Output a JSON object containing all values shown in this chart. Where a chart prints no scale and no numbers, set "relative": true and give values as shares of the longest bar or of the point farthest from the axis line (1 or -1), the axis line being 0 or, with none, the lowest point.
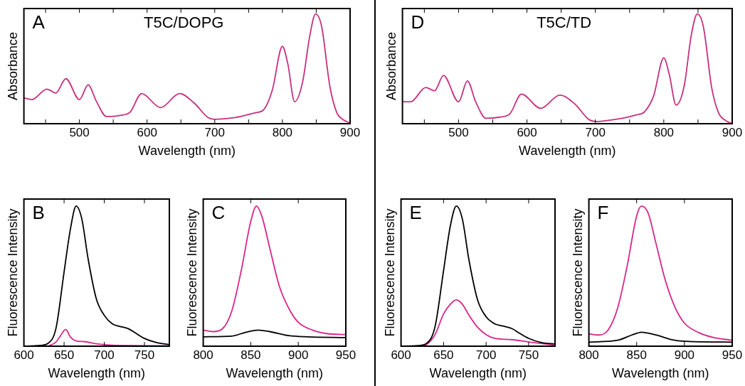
{
  "chart_data": [
    {
      "type": "line",
      "title": "T5C/DOPG",
      "annotations": [
        "A"
      ],
      "xlabel": "Wavelength (nm)",
      "ylabel": "Absorbance",
      "relative": true,
      "tick_labels": "x",
      "grid": false,
      "legend": false,
      "marker": "none",
      "line_style": "solid",
      "xlim": [
        418,
        900
      ],
      "xticks": [
        {
          "value": 450,
          "label": null
        },
        500,
        {
          "value": 550,
          "label": null
        },
        600,
        {
          "value": 650,
          "label": null
        },
        700,
        {
          "value": 750,
          "label": null
        },
        800,
        {
          "value": 850,
          "label": null
        },
        900
      ],
      "series": [
        {
          "color": "#c8307f",
          "x": [
            418,
            430,
            452,
            465,
            480,
            500,
            513,
            525,
            540,
            560,
            575,
            592,
            620,
            648,
            670,
            690,
            700,
            730,
            760,
            772,
            785,
            800,
            808,
            818,
            830,
            840,
            849,
            858,
            870,
            880,
            890,
            900
          ],
          "values": [
            0.236,
            0.22,
            0.315,
            0.28,
            0.41,
            0.22,
            0.355,
            0.205,
            0.066,
            0.076,
            0.106,
            0.275,
            0.146,
            0.275,
            0.186,
            0.056,
            0.04,
            0.056,
            0.1,
            0.126,
            0.305,
            0.705,
            0.545,
            0.2,
            0.385,
            0.785,
            1,
            0.885,
            0.345,
            0.106,
            0.036,
            0.006
          ]
        }
      ]
    },
    {
      "type": "line",
      "title": "T5C/TD",
      "annotations": [
        "D"
      ],
      "xlabel": "Wavelength (nm)",
      "ylabel": "Absorbance",
      "relative": true,
      "tick_labels": "x",
      "grid": false,
      "legend": false,
      "marker": "none",
      "line_style": "solid",
      "xlim": [
        418,
        900
      ],
      "xticks": [
        {
          "value": 450,
          "label": null
        },
        500,
        {
          "value": 550,
          "label": null
        },
        600,
        {
          "value": 650,
          "label": null
        },
        700,
        {
          "value": 750,
          "label": null
        },
        800,
        {
          "value": 850,
          "label": null
        },
        900
      ],
      "series": [
        {
          "color": "#c8307f",
          "x": [
            418,
            430,
            452,
            465,
            478,
            500,
            513,
            525,
            540,
            560,
            575,
            592,
            620,
            648,
            670,
            690,
            700,
            730,
            760,
            772,
            785,
            800,
            808,
            818,
            830,
            840,
            849,
            858,
            870,
            880,
            890,
            900
          ],
          "values": [
            0.2,
            0.2,
            0.33,
            0.3,
            0.44,
            0.2,
            0.39,
            0.2,
            0.05,
            0.06,
            0.09,
            0.27,
            0.14,
            0.26,
            0.18,
            0.04,
            0.02,
            0.04,
            0.08,
            0.11,
            0.25,
            0.6,
            0.45,
            0.17,
            0.35,
            0.8,
            1,
            0.88,
            0.33,
            0.1,
            0.03,
            0
          ]
        }
      ]
    },
    {
      "type": "line",
      "annotations": [
        "B"
      ],
      "xlabel": "Wavelength (nm)",
      "ylabel": "Fluorescence Intensity",
      "relative": true,
      "tick_labels": "x",
      "grid": false,
      "legend": false,
      "marker": "none",
      "line_style": "solid",
      "xlim": [
        600,
        781
      ],
      "xticks": [
        600,
        650,
        700,
        750
      ],
      "series": [
        {
          "color": "#000000",
          "x": [
            600,
            620,
            630,
            640,
            650,
            658,
            665,
            672,
            680,
            690,
            700,
            710,
            720,
            730,
            740,
            750,
            765,
            781
          ],
          "values": [
            0,
            0.005,
            0.02,
            0.13,
            0.53,
            0.84,
            1,
            0.91,
            0.62,
            0.34,
            0.22,
            0.16,
            0.14,
            0.125,
            0.09,
            0.055,
            0.026,
            0.012
          ]
        },
        {
          "color": "#d9268a",
          "x": [
            630,
            640,
            645,
            652,
            658,
            665,
            675,
            690,
            710,
            781
          ],
          "values": [
            0,
            0.03,
            0.07,
            0.12,
            0.064,
            0.038,
            0.033,
            0.017,
            0.007,
            0.003
          ]
        }
      ]
    },
    {
      "type": "line",
      "annotations": [
        "C"
      ],
      "xlabel": "Wavelength (nm)",
      "ylabel": "Fluorescence Intensity",
      "relative": true,
      "tick_labels": "x",
      "grid": false,
      "legend": false,
      "marker": "none",
      "line_style": "solid",
      "xlim": [
        800,
        950
      ],
      "xticks": [
        800,
        850,
        900,
        950
      ],
      "series": [
        {
          "color": "#d9268a",
          "x": [
            800,
            810,
            820,
            830,
            840,
            850,
            856,
            862,
            870,
            880,
            890,
            900,
            915,
            930,
            950
          ],
          "values": [
            0.115,
            0.104,
            0.123,
            0.25,
            0.54,
            0.89,
            1,
            0.92,
            0.7,
            0.43,
            0.27,
            0.17,
            0.115,
            0.09,
            0.083
          ]
        },
        {
          "color": "#000000",
          "x": [
            800,
            830,
            845,
            858,
            870,
            890,
            910,
            950
          ],
          "values": [
            0.067,
            0.072,
            0.1,
            0.115,
            0.104,
            0.075,
            0.067,
            0.062
          ]
        }
      ]
    },
    {
      "type": "line",
      "annotations": [
        "E"
      ],
      "xlabel": "Wavelength (nm)",
      "ylabel": "Fluorescence Intensity",
      "relative": true,
      "tick_labels": "x",
      "grid": false,
      "legend": false,
      "marker": "none",
      "line_style": "solid",
      "xlim": [
        600,
        781
      ],
      "xticks": [
        600,
        650,
        700,
        750
      ],
      "series": [
        {
          "color": "#000000",
          "x": [
            600,
            620,
            630,
            640,
            650,
            658,
            665,
            672,
            680,
            690,
            700,
            710,
            720,
            730,
            740,
            750,
            765,
            781
          ],
          "values": [
            0,
            0.004,
            0.02,
            0.14,
            0.54,
            0.86,
            1,
            0.91,
            0.61,
            0.33,
            0.21,
            0.16,
            0.144,
            0.127,
            0.09,
            0.056,
            0.026,
            0.016
          ]
        },
        {
          "color": "#d9268a",
          "x": [
            620,
            630,
            640,
            650,
            658,
            665,
            672,
            680,
            690,
            700,
            710,
            730,
            750,
            781
          ],
          "values": [
            0,
            0.012,
            0.083,
            0.23,
            0.3,
            0.33,
            0.3,
            0.22,
            0.135,
            0.083,
            0.056,
            0.047,
            0.03,
            0.007
          ]
        }
      ]
    },
    {
      "type": "line",
      "annotations": [
        "F"
      ],
      "xlabel": "Wavelength (nm)",
      "ylabel": "Fluorescence Intensity",
      "relative": true,
      "tick_labels": "x",
      "grid": false,
      "legend": false,
      "marker": "none",
      "line_style": "solid",
      "xlim": [
        800,
        950
      ],
      "xticks": [
        800,
        850,
        900,
        950
      ],
      "series": [
        {
          "color": "#d9268a",
          "x": [
            800,
            810,
            820,
            830,
            840,
            850,
            855,
            862,
            870,
            880,
            890,
            900,
            915,
            930,
            950
          ],
          "values": [
            0.088,
            0.08,
            0.114,
            0.27,
            0.57,
            0.93,
            1,
            0.95,
            0.74,
            0.47,
            0.28,
            0.165,
            0.097,
            0.063,
            0.042
          ]
        },
        {
          "color": "#000000",
          "x": [
            800,
            830,
            845,
            855,
            870,
            890,
            910,
            950
          ],
          "values": [
            0.029,
            0.042,
            0.08,
            0.1,
            0.08,
            0.042,
            0.032,
            0.029
          ]
        }
      ]
    }
  ]
}
